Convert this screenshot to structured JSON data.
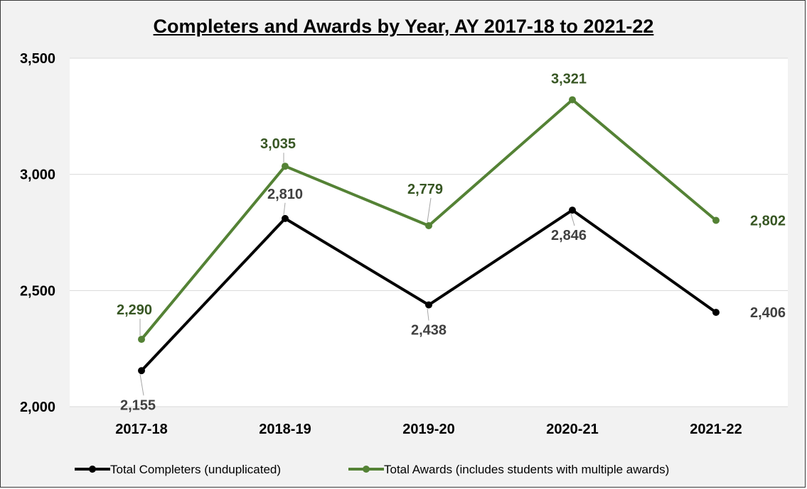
{
  "chart_data": {
    "type": "line",
    "title": "Completers and Awards by Year, AY 2017-18 to 2021-22",
    "xlabel": "",
    "ylabel": "",
    "categories": [
      "2017-18",
      "2018-19",
      "2019-20",
      "2020-21",
      "2021-22"
    ],
    "y_tick_labels": [
      "2,000",
      "2,500",
      "3,000",
      "3,500"
    ],
    "ylim": [
      2000,
      3500
    ],
    "grid": true,
    "legend_position": "bottom",
    "series": [
      {
        "name": "Total Completers (unduplicated)",
        "values": [
          2155,
          2810,
          2438,
          2846,
          2406
        ],
        "labels": [
          "2,155",
          "2,810",
          "2,438",
          "2,846",
          "2,406"
        ],
        "color": "#000000",
        "label_color": "#404040"
      },
      {
        "name": "Total Awards (includes students with multiple awards)",
        "values": [
          2290,
          3035,
          2779,
          3321,
          2802
        ],
        "labels": [
          "2,290",
          "3,035",
          "2,779",
          "3,321",
          "2,802"
        ],
        "color": "#548235",
        "label_color": "#375623"
      }
    ]
  }
}
